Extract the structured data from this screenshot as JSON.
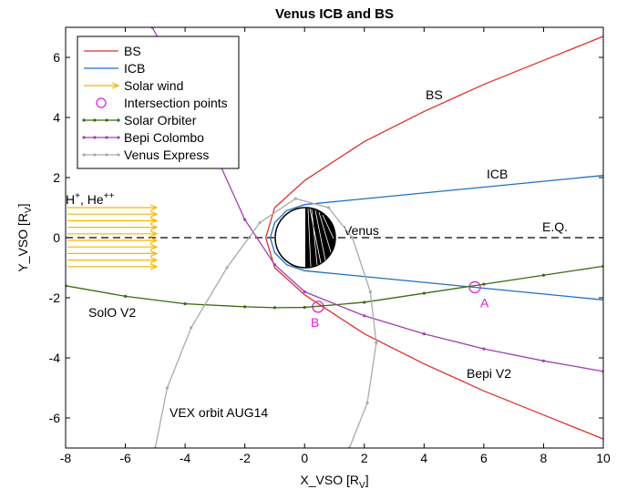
{
  "chart_data": {
    "type": "line",
    "title": "Venus ICB and BS",
    "xlabel": [
      "X_VSO [R",
      "V",
      "]"
    ],
    "ylabel": [
      "Y_VSO [R",
      "V",
      "]"
    ],
    "xlim": [
      -8,
      10
    ],
    "ylim": [
      -7,
      7
    ],
    "xticks": [
      -8,
      -6,
      -4,
      -2,
      0,
      2,
      4,
      6,
      8,
      10
    ],
    "yticks": [
      -6,
      -4,
      -2,
      0,
      2,
      4,
      6
    ],
    "legend": "upper left",
    "series": [
      {
        "name": "BS",
        "color": "#e03030",
        "style": "line",
        "x": [
          10,
          8,
          6,
          4,
          2,
          0,
          -1,
          -1.3,
          -1,
          0,
          2,
          4,
          6,
          8,
          10
        ],
        "values": [
          6.7,
          5.9,
          5.1,
          4.2,
          3.2,
          1.9,
          1.0,
          0,
          -1.0,
          -1.9,
          -3.2,
          -4.2,
          -5.1,
          -5.9,
          -6.7
        ]
      },
      {
        "name": "ICB",
        "color": "#1f6fc0",
        "style": "line",
        "x": [
          10,
          0,
          -0.6,
          -1.0,
          -1.15,
          -1.0,
          -0.6,
          0,
          10
        ],
        "values": [
          2.07,
          1.1,
          0.9,
          0.5,
          0,
          -0.5,
          -0.9,
          -1.1,
          -2.07
        ]
      },
      {
        "name": "Solar wind",
        "color": "#f5b800",
        "style": "arrow"
      },
      {
        "name": "Intersection points",
        "color": "#e020e0",
        "style": "circle",
        "x": [
          5.7,
          0.45
        ],
        "values": [
          -1.65,
          -2.3
        ],
        "labels": [
          "A",
          "B"
        ]
      },
      {
        "name": "Solar Orbiter",
        "color": "#3a6a10",
        "style": "dots",
        "x": [
          -8,
          -6,
          -4,
          -2,
          -1,
          0,
          2,
          4,
          6,
          8,
          10
        ],
        "values": [
          -1.6,
          -1.95,
          -2.2,
          -2.3,
          -2.33,
          -2.32,
          -2.15,
          -1.85,
          -1.55,
          -1.25,
          -0.95
        ]
      },
      {
        "name": "Bepi Colombo",
        "color": "#a040b0",
        "style": "dots",
        "x": [
          -5.1,
          -4,
          -3,
          -2,
          -1,
          0,
          2,
          4,
          6,
          8,
          10
        ],
        "values": [
          7,
          5,
          2.8,
          0.6,
          -0.9,
          -1.8,
          -2.6,
          -3.2,
          -3.7,
          -4.1,
          -4.45
        ]
      },
      {
        "name": "Venus Express",
        "color": "#aaaaaa",
        "style": "dots",
        "x": [
          -5,
          -4.6,
          -3.8,
          -2.6,
          -1.5,
          -0.3,
          0.8,
          1.6,
          2.2,
          2.4,
          2.1,
          1.5
        ],
        "values": [
          -7,
          -5,
          -3,
          -1,
          0.5,
          1.3,
          1,
          0,
          -1.8,
          -3.5,
          -5.5,
          -7
        ]
      }
    ],
    "annotations": [
      "BS",
      "ICB",
      "Venus",
      "E.Q.",
      "SolO V2",
      "Bepi V2",
      "VEX orbit AUG14"
    ],
    "ion_label": [
      "H",
      "+",
      ", He",
      "++"
    ]
  }
}
